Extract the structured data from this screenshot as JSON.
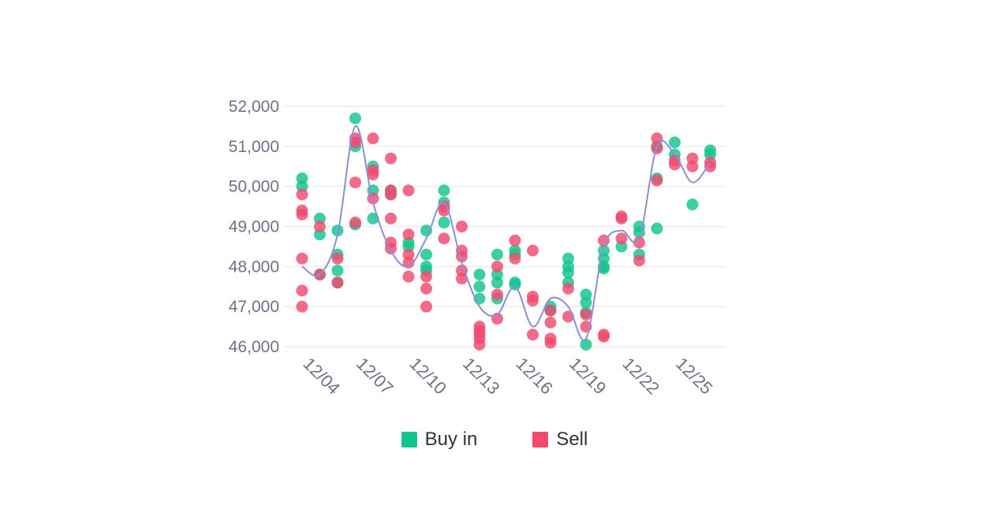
{
  "colors": {
    "buy": "#12c48e",
    "sell": "#f04a6e",
    "trend": "#8c8fd8",
    "grid": "#eef0f4",
    "axis_text": "#6e7287"
  },
  "chart_data": {
    "type": "scatter",
    "x_categories": [
      "12/04",
      "12/05",
      "12/06",
      "12/07",
      "12/08",
      "12/09",
      "12/10",
      "12/11",
      "12/12",
      "12/13",
      "12/14",
      "12/15",
      "12/16",
      "12/17",
      "12/18",
      "12/19",
      "12/20",
      "12/21",
      "12/22",
      "12/23",
      "12/24",
      "12/25",
      "12/26"
    ],
    "x_tick_labels": [
      "12/04",
      "12/07",
      "12/10",
      "12/13",
      "12/16",
      "12/19",
      "12/22",
      "12/25"
    ],
    "ylim": [
      46000,
      52000
    ],
    "y_ticks": [
      46000,
      47000,
      48000,
      49000,
      50000,
      51000,
      52000
    ],
    "y_tick_labels": [
      "46,000",
      "47,000",
      "48,000",
      "49,000",
      "50,000",
      "51,000",
      "52,000"
    ],
    "grid": true,
    "legend": "bottom-center",
    "series": [
      {
        "name": "Buy in",
        "points": [
          [
            "12/04",
            50200
          ],
          [
            "12/04",
            50000
          ],
          [
            "12/05",
            49200
          ],
          [
            "12/05",
            48800
          ],
          [
            "12/05",
            47800
          ],
          [
            "12/06",
            48900
          ],
          [
            "12/06",
            48300
          ],
          [
            "12/06",
            47900
          ],
          [
            "12/06",
            47600
          ],
          [
            "12/07",
            51700
          ],
          [
            "12/07",
            51000
          ],
          [
            "12/07",
            49050
          ],
          [
            "12/08",
            50500
          ],
          [
            "12/08",
            49900
          ],
          [
            "12/08",
            49200
          ],
          [
            "12/09",
            49900
          ],
          [
            "12/09",
            49800
          ],
          [
            "12/10",
            48600
          ],
          [
            "12/10",
            48500
          ],
          [
            "12/11",
            48900
          ],
          [
            "12/11",
            48300
          ],
          [
            "12/11",
            48000
          ],
          [
            "12/11",
            47900
          ],
          [
            "12/12",
            49900
          ],
          [
            "12/12",
            49600
          ],
          [
            "12/12",
            49100
          ],
          [
            "12/14",
            47800
          ],
          [
            "12/14",
            47500
          ],
          [
            "12/14",
            47200
          ],
          [
            "12/15",
            48300
          ],
          [
            "12/15",
            47800
          ],
          [
            "12/15",
            47600
          ],
          [
            "12/15",
            47200
          ],
          [
            "12/16",
            48400
          ],
          [
            "12/16",
            48300
          ],
          [
            "12/16",
            47600
          ],
          [
            "12/16",
            47550
          ],
          [
            "12/18",
            47000
          ],
          [
            "12/18",
            46900
          ],
          [
            "12/19",
            48200
          ],
          [
            "12/19",
            48000
          ],
          [
            "12/19",
            47850
          ],
          [
            "12/19",
            47600
          ],
          [
            "12/20",
            47300
          ],
          [
            "12/20",
            47100
          ],
          [
            "12/20",
            46850
          ],
          [
            "12/20",
            46050
          ],
          [
            "12/21",
            48400
          ],
          [
            "12/21",
            48200
          ],
          [
            "12/21",
            48000
          ],
          [
            "12/21",
            47950
          ],
          [
            "12/22",
            48500
          ],
          [
            "12/23",
            49000
          ],
          [
            "12/23",
            48850
          ],
          [
            "12/23",
            48300
          ],
          [
            "12/24",
            51000
          ],
          [
            "12/24",
            50200
          ],
          [
            "12/24",
            48950
          ],
          [
            "12/25",
            51100
          ],
          [
            "12/25",
            50800
          ],
          [
            "12/26",
            49550
          ],
          [
            "12/27",
            50900
          ],
          [
            "12/27",
            50800
          ]
        ]
      },
      {
        "name": "Sell",
        "points": [
          [
            "12/04",
            49800
          ],
          [
            "12/04",
            49400
          ],
          [
            "12/04",
            49300
          ],
          [
            "12/04",
            48200
          ],
          [
            "12/04",
            47400
          ],
          [
            "12/04",
            47000
          ],
          [
            "12/05",
            49000
          ],
          [
            "12/05",
            47800
          ],
          [
            "12/06",
            48200
          ],
          [
            "12/06",
            47600
          ],
          [
            "12/07",
            51200
          ],
          [
            "12/07",
            51100
          ],
          [
            "12/07",
            50100
          ],
          [
            "12/07",
            49100
          ],
          [
            "12/08",
            51200
          ],
          [
            "12/08",
            50400
          ],
          [
            "12/08",
            50300
          ],
          [
            "12/08",
            49700
          ],
          [
            "12/09",
            50700
          ],
          [
            "12/09",
            49900
          ],
          [
            "12/09",
            49800
          ],
          [
            "12/09",
            49200
          ],
          [
            "12/09",
            48600
          ],
          [
            "12/09",
            48450
          ],
          [
            "12/10",
            49900
          ],
          [
            "12/10",
            48800
          ],
          [
            "12/10",
            48300
          ],
          [
            "12/10",
            48100
          ],
          [
            "12/10",
            47750
          ],
          [
            "12/11",
            47750
          ],
          [
            "12/11",
            47450
          ],
          [
            "12/11",
            47000
          ],
          [
            "12/12",
            49500
          ],
          [
            "12/12",
            49400
          ],
          [
            "12/12",
            48700
          ],
          [
            "12/13",
            49000
          ],
          [
            "12/13",
            48400
          ],
          [
            "12/13",
            48250
          ],
          [
            "12/13",
            47900
          ],
          [
            "12/13",
            47700
          ],
          [
            "12/14",
            46500
          ],
          [
            "12/14",
            46400
          ],
          [
            "12/14",
            46300
          ],
          [
            "12/14",
            46200
          ],
          [
            "12/14",
            46050
          ],
          [
            "12/15",
            48000
          ],
          [
            "12/15",
            47300
          ],
          [
            "12/15",
            46700
          ],
          [
            "12/16",
            48650
          ],
          [
            "12/16",
            48200
          ],
          [
            "12/17",
            48400
          ],
          [
            "12/17",
            47250
          ],
          [
            "12/17",
            47150
          ],
          [
            "12/17",
            46300
          ],
          [
            "12/18",
            46900
          ],
          [
            "12/18",
            46600
          ],
          [
            "12/18",
            46200
          ],
          [
            "12/18",
            46100
          ],
          [
            "12/19",
            47450
          ],
          [
            "12/19",
            46750
          ],
          [
            "12/20",
            46800
          ],
          [
            "12/20",
            46500
          ],
          [
            "12/21",
            48650
          ],
          [
            "12/21",
            46300
          ],
          [
            "12/21",
            46250
          ],
          [
            "12/22",
            49250
          ],
          [
            "12/22",
            49200
          ],
          [
            "12/22",
            48700
          ],
          [
            "12/23",
            48600
          ],
          [
            "12/23",
            48150
          ],
          [
            "12/24",
            51200
          ],
          [
            "12/24",
            50950
          ],
          [
            "12/24",
            50150
          ],
          [
            "12/25",
            50650
          ],
          [
            "12/25",
            50550
          ],
          [
            "12/26",
            50700
          ],
          [
            "12/26",
            50500
          ],
          [
            "12/27",
            50600
          ],
          [
            "12/27",
            50500
          ]
        ]
      }
    ],
    "trend_line": {
      "x": [
        "12/04",
        "12/05",
        "12/06",
        "12/07",
        "12/08",
        "12/09",
        "12/10",
        "12/11",
        "12/12",
        "12/13",
        "12/14",
        "12/15",
        "12/16",
        "12/17",
        "12/18",
        "12/19",
        "12/20",
        "12/21",
        "12/22",
        "12/23",
        "12/24",
        "12/25",
        "12/26",
        "12/27"
      ],
      "y": [
        48000,
        47800,
        48800,
        51500,
        49600,
        48400,
        48000,
        48700,
        49600,
        48100,
        47000,
        46800,
        47500,
        46500,
        47200,
        47000,
        46200,
        48500,
        48900,
        48700,
        51000,
        50800,
        50100,
        50600
      ]
    }
  },
  "legend_items": [
    {
      "label": "Buy in",
      "color": "#12c48e"
    },
    {
      "label": "Sell",
      "color": "#f04a6e"
    }
  ]
}
